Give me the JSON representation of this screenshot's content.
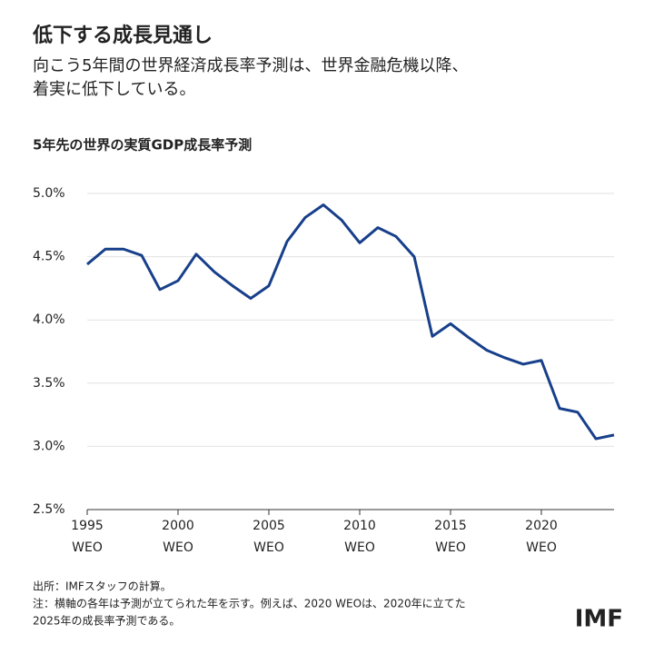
{
  "header": {
    "title": "低下する成長見通し",
    "subtitle_lines": [
      "向こう5年間の世界経済成長率予測は、世界金融危機以降、",
      "着実に低下している。"
    ]
  },
  "chart_data": {
    "type": "line",
    "title": "5年先の世界の実質GDP成長率予測",
    "x": [
      1995,
      1996,
      1997,
      1998,
      1999,
      2000,
      2001,
      2002,
      2003,
      2004,
      2005,
      2006,
      2007,
      2008,
      2009,
      2010,
      2011,
      2012,
      2013,
      2014,
      2015,
      2016,
      2017,
      2018,
      2019,
      2020,
      2021,
      2022,
      2023,
      2024
    ],
    "series": [
      {
        "color": "#173f8a",
        "values": [
          4.44,
          4.56,
          4.56,
          4.51,
          4.24,
          4.31,
          4.52,
          4.38,
          4.27,
          4.17,
          4.27,
          4.62,
          4.81,
          4.91,
          4.79,
          4.61,
          4.73,
          4.66,
          4.5,
          3.87,
          3.97,
          3.86,
          3.76,
          3.7,
          3.65,
          3.68,
          3.3,
          3.27,
          3.06,
          3.09
        ]
      }
    ],
    "xlim": [
      1995,
      2024
    ],
    "xticks": [
      1995,
      2000,
      2005,
      2010,
      2015,
      2020
    ],
    "x_tick_sublabel": "WEO",
    "ylim": [
      2.5,
      5.0
    ],
    "yticks": [
      {
        "value": 2.5,
        "label": "2.5%"
      },
      {
        "value": 3.0,
        "label": "3.0%"
      },
      {
        "value": 3.5,
        "label": "3.5%"
      },
      {
        "value": 4.0,
        "label": "4.0%"
      },
      {
        "value": 4.5,
        "label": "4.5%"
      },
      {
        "value": 5.0,
        "label": "5.0%"
      }
    ],
    "grid": true
  },
  "footer": {
    "notes": [
      "出所：IMFスタッフの計算。",
      "注：横軸の各年は予測が立てられた年を示す。例えば、2020 WEOは、2020年に立てた",
      "2025年の成長率予測である。"
    ],
    "logo": "IMF"
  }
}
